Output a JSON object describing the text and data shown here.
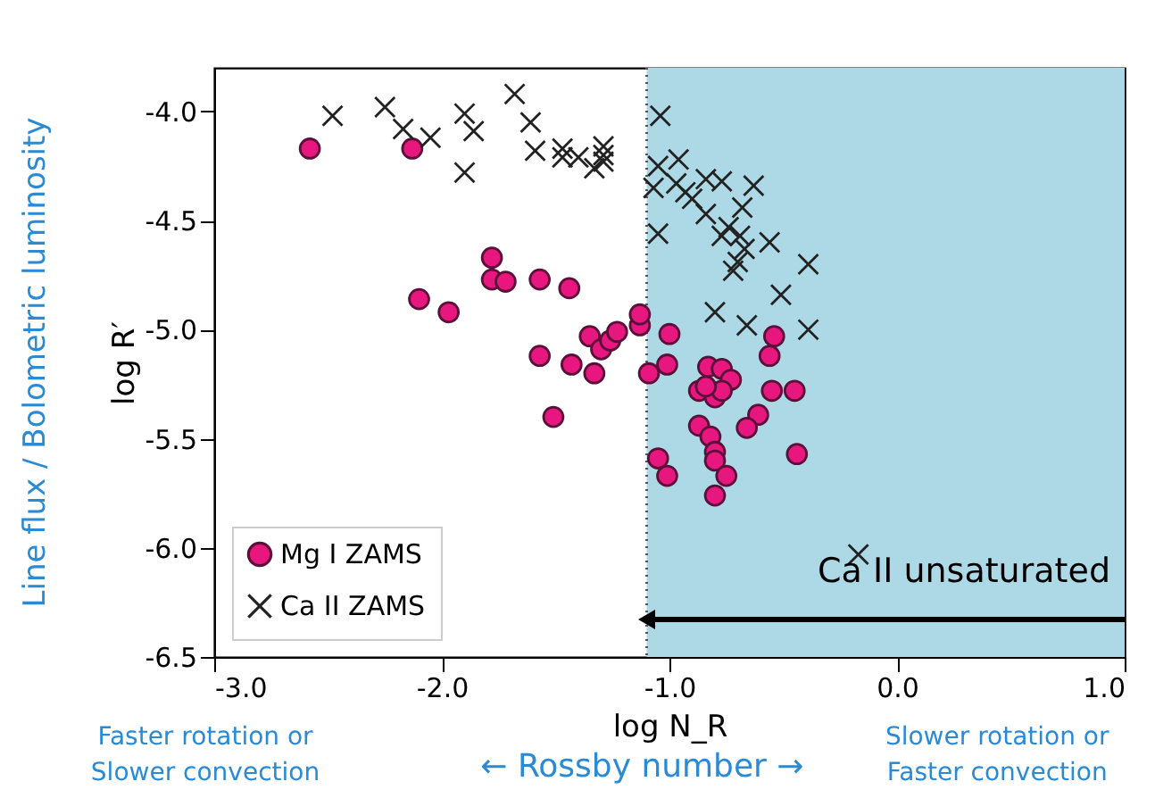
{
  "chart_data": {
    "type": "scatter",
    "xlabel": "log N_R",
    "ylabel": "log R′",
    "xlim": [
      -3.0,
      1.0
    ],
    "ylim": [
      -6.5,
      -3.8
    ],
    "xticks": [
      {
        "value": -3,
        "label": "-3.0"
      },
      {
        "value": -2,
        "label": "-2.0"
      },
      {
        "value": -1,
        "label": "-1.0"
      },
      {
        "value": 0,
        "label": "0.0"
      },
      {
        "value": 1,
        "label": "1.0"
      }
    ],
    "yticks": [
      {
        "value": -4,
        "label": "-4.0"
      },
      {
        "value": -4.5,
        "label": "-4.5"
      },
      {
        "value": -5,
        "label": "-5.0"
      },
      {
        "value": -5.5,
        "label": "-5.5"
      },
      {
        "value": -6,
        "label": "-6.0"
      },
      {
        "value": -6.5,
        "label": "-6.5"
      }
    ],
    "grid": false,
    "legend": "bottom left",
    "series": [
      {
        "name": "Mg I ZAMS",
        "color": "#e8177f",
        "marker": "circle",
        "x": [
          -2.58,
          -2.13,
          -2.1,
          -1.97,
          -1.78,
          -1.78,
          -1.72,
          -1.57,
          -1.57,
          -1.44,
          -1.51,
          -1.43,
          -1.35,
          -1.33,
          -1.3,
          -1.26,
          -1.23,
          -1.13,
          -1.13,
          -1.09,
          -1.0,
          -1.01,
          -0.83,
          -0.77,
          -0.73,
          -0.87,
          -0.8,
          -0.77,
          -0.84,
          -0.55,
          -0.56,
          -0.54,
          -0.45,
          -1.05,
          -1.01,
          -0.87,
          -0.82,
          -0.8,
          -0.8,
          -0.75,
          -0.8,
          -0.61,
          -0.66,
          -0.44
        ],
        "values": [
          -4.17,
          -4.17,
          -4.86,
          -4.92,
          -4.67,
          -4.77,
          -4.78,
          -4.77,
          -5.12,
          -4.81,
          -5.4,
          -5.16,
          -5.03,
          -5.2,
          -5.09,
          -5.05,
          -5.01,
          -4.98,
          -4.93,
          -5.2,
          -5.02,
          -5.16,
          -5.17,
          -5.18,
          -5.23,
          -5.28,
          -5.31,
          -5.28,
          -5.26,
          -5.28,
          -5.12,
          -5.03,
          -5.28,
          -5.59,
          -5.67,
          -5.44,
          -5.49,
          -5.56,
          -5.6,
          -5.67,
          -5.76,
          -5.39,
          -5.45,
          -5.57
        ]
      },
      {
        "name": "Ca II ZAMS",
        "color": "#222222",
        "marker": "cross",
        "x": [
          -2.48,
          -2.25,
          -2.17,
          -2.05,
          -1.9,
          -1.86,
          -1.9,
          -1.68,
          -1.61,
          -1.59,
          -1.47,
          -1.47,
          -1.4,
          -1.33,
          -1.29,
          -1.29,
          -1.29,
          -1.04,
          -1.05,
          -0.96,
          -1.07,
          -0.97,
          -0.93,
          -0.9,
          -0.84,
          -0.84,
          -0.77,
          -0.63,
          -0.68,
          -0.74,
          -0.77,
          -0.69,
          -0.67,
          -0.7,
          -0.72,
          -0.56,
          -0.39,
          -0.51,
          -1.05,
          -0.8,
          -0.66,
          -0.39,
          -0.17
        ],
        "values": [
          -4.02,
          -3.98,
          -4.08,
          -4.12,
          -4.01,
          -4.09,
          -4.28,
          -3.92,
          -4.05,
          -4.18,
          -4.17,
          -4.21,
          -4.21,
          -4.26,
          -4.23,
          -4.16,
          -4.2,
          -4.02,
          -4.25,
          -4.22,
          -4.35,
          -4.33,
          -4.37,
          -4.4,
          -4.47,
          -4.31,
          -4.32,
          -4.34,
          -4.44,
          -4.53,
          -4.57,
          -4.57,
          -4.63,
          -4.69,
          -4.73,
          -4.6,
          -4.7,
          -4.84,
          -4.56,
          -4.92,
          -4.98,
          -5.0,
          -6.03
        ]
      }
    ],
    "ref_lines": [
      {
        "axis": "x",
        "value": -1.1,
        "line_style": "dotted",
        "color": "#555555"
      }
    ],
    "bands": [
      {
        "axis": "x",
        "from": -1.1,
        "to": 1.0,
        "color": "#add8e6"
      }
    ],
    "annotations": [
      "Ca II unsaturated",
      "Line flux / Bolometric luminosity",
      "Faster rotation or\nSlower convection",
      "← Rossby number →",
      "Slower rotation or\nFaster convection"
    ]
  }
}
